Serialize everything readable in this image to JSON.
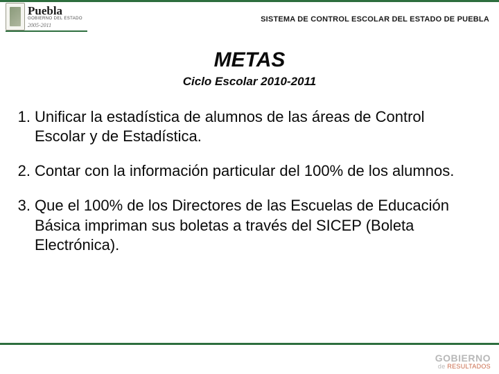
{
  "colors": {
    "border": "#2d6e3e",
    "text": "#0a0a0a",
    "footer_gray": "#b8b8b8",
    "footer_accent": "#c96a4a"
  },
  "header": {
    "logo": {
      "state_name": "Puebla",
      "subline": "GOBIERNO DEL ESTADO",
      "years": "2005-2011"
    },
    "system_title": "SISTEMA DE CONTROL ESCOLAR DEL ESTADO DE PUEBLA"
  },
  "title": "METAS",
  "subtitle": "Ciclo Escolar 2010-2011",
  "goals": [
    {
      "num": "1.",
      "text": "Unificar la estadística de alumnos de las áreas de Control Escolar y de Estadística."
    },
    {
      "num": "2.",
      "text": "Contar con la información particular del 100% de los alumnos."
    },
    {
      "num": "3.",
      "text": "Que el 100% de los Directores de las Escuelas de Educación Básica impriman sus boletas a través del SICEP (Boleta Electrónica)."
    }
  ],
  "footer": {
    "line1": "GOBIERNO",
    "line2_prefix": "de ",
    "line2_accent": "RESULTADOS"
  }
}
